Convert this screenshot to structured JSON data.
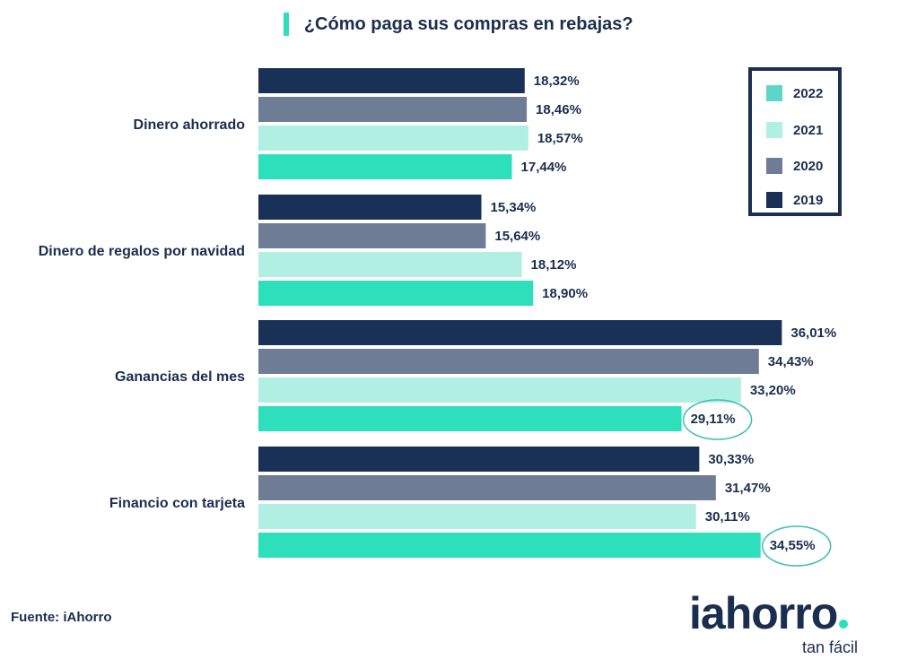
{
  "title": "¿Cómo paga sus compras en rebajas?",
  "source": "Fuente: iAhorro",
  "logo": {
    "name": "iahorro",
    "tagline": "tan fácil"
  },
  "legend": [
    {
      "label": "2022",
      "color": "#5cd6c8"
    },
    {
      "label": "2021",
      "color": "#b1efe3"
    },
    {
      "label": "2020",
      "color": "#6e7c95"
    },
    {
      "label": "2019",
      "color": "#1a3157"
    }
  ],
  "chart_data": {
    "type": "bar",
    "orientation": "horizontal",
    "title": "¿Cómo paga sus compras en rebajas?",
    "categories": [
      "Dinero ahorrado",
      "Dinero de regalos por navidad",
      "Ganancias del mes",
      "Financio con tarjeta"
    ],
    "series": [
      {
        "name": "2019",
        "color": "#1a3157",
        "values": [
          18.32,
          15.34,
          36.01,
          30.33
        ],
        "labels": [
          "18,32%",
          "15,34%",
          "36,01%",
          "30,33%"
        ]
      },
      {
        "name": "2020",
        "color": "#6e7c95",
        "values": [
          18.46,
          15.64,
          34.43,
          31.47
        ],
        "labels": [
          "18,46%",
          "15,64%",
          "34,43%",
          "31,47%"
        ]
      },
      {
        "name": "2021",
        "color": "#b1efe3",
        "values": [
          18.57,
          18.12,
          33.2,
          30.11
        ],
        "labels": [
          "18,57%",
          "18,12%",
          "33,20%",
          "30,11%"
        ]
      },
      {
        "name": "2022",
        "color": "#2ddfba",
        "values": [
          17.44,
          18.9,
          29.11,
          34.55
        ],
        "labels": [
          "17,44%",
          "18,90%",
          "29,11%",
          "34,55%"
        ]
      }
    ],
    "highlighted": [
      "29,11%",
      "34,55%"
    ],
    "grid": false,
    "legend_position": "top-right"
  }
}
